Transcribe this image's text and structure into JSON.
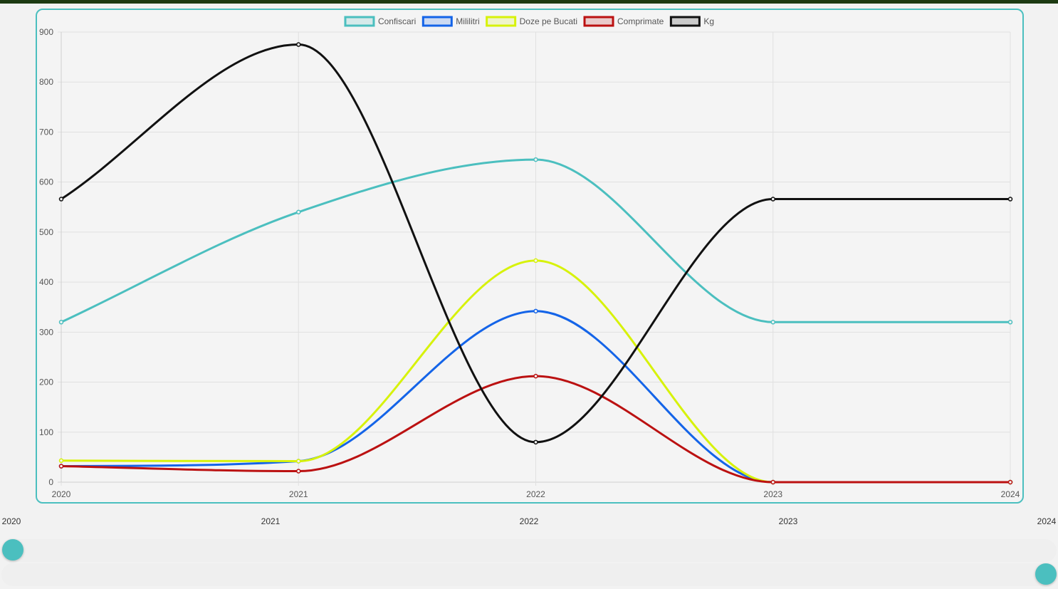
{
  "chart_data": {
    "type": "line",
    "categories": [
      "2020",
      "2021",
      "2022",
      "2023",
      "2024"
    ],
    "series": [
      {
        "name": "Confiscari",
        "color": "#4bbfbf",
        "values": [
          320,
          540,
          645,
          320,
          320
        ]
      },
      {
        "name": "Mililitri",
        "color": "#1464e8",
        "values": [
          32,
          42,
          342,
          0,
          0
        ]
      },
      {
        "name": "Doze pe Bucati",
        "color": "#d7f20a",
        "values": [
          43,
          42,
          443,
          0,
          0
        ]
      },
      {
        "name": "Comprimate",
        "color": "#bb1111",
        "values": [
          32,
          22,
          212,
          0,
          0
        ]
      },
      {
        "name": "Kg",
        "color": "#111111",
        "values": [
          566,
          875,
          80,
          566,
          566
        ]
      }
    ],
    "yticks": [
      0,
      100,
      200,
      300,
      400,
      500,
      600,
      700,
      800,
      900
    ],
    "ylim": [
      0,
      900
    ],
    "grid": true,
    "legend": "top-center",
    "title": "",
    "xlabel": "",
    "ylabel": ""
  },
  "range_slider": {
    "year_labels": [
      "2020",
      "2021",
      "2022",
      "2023",
      "2024"
    ],
    "min_value": "2020",
    "max_value": "2024"
  },
  "colors": {
    "accent": "#4bbfbf",
    "top_bar": "#1d3a12"
  }
}
